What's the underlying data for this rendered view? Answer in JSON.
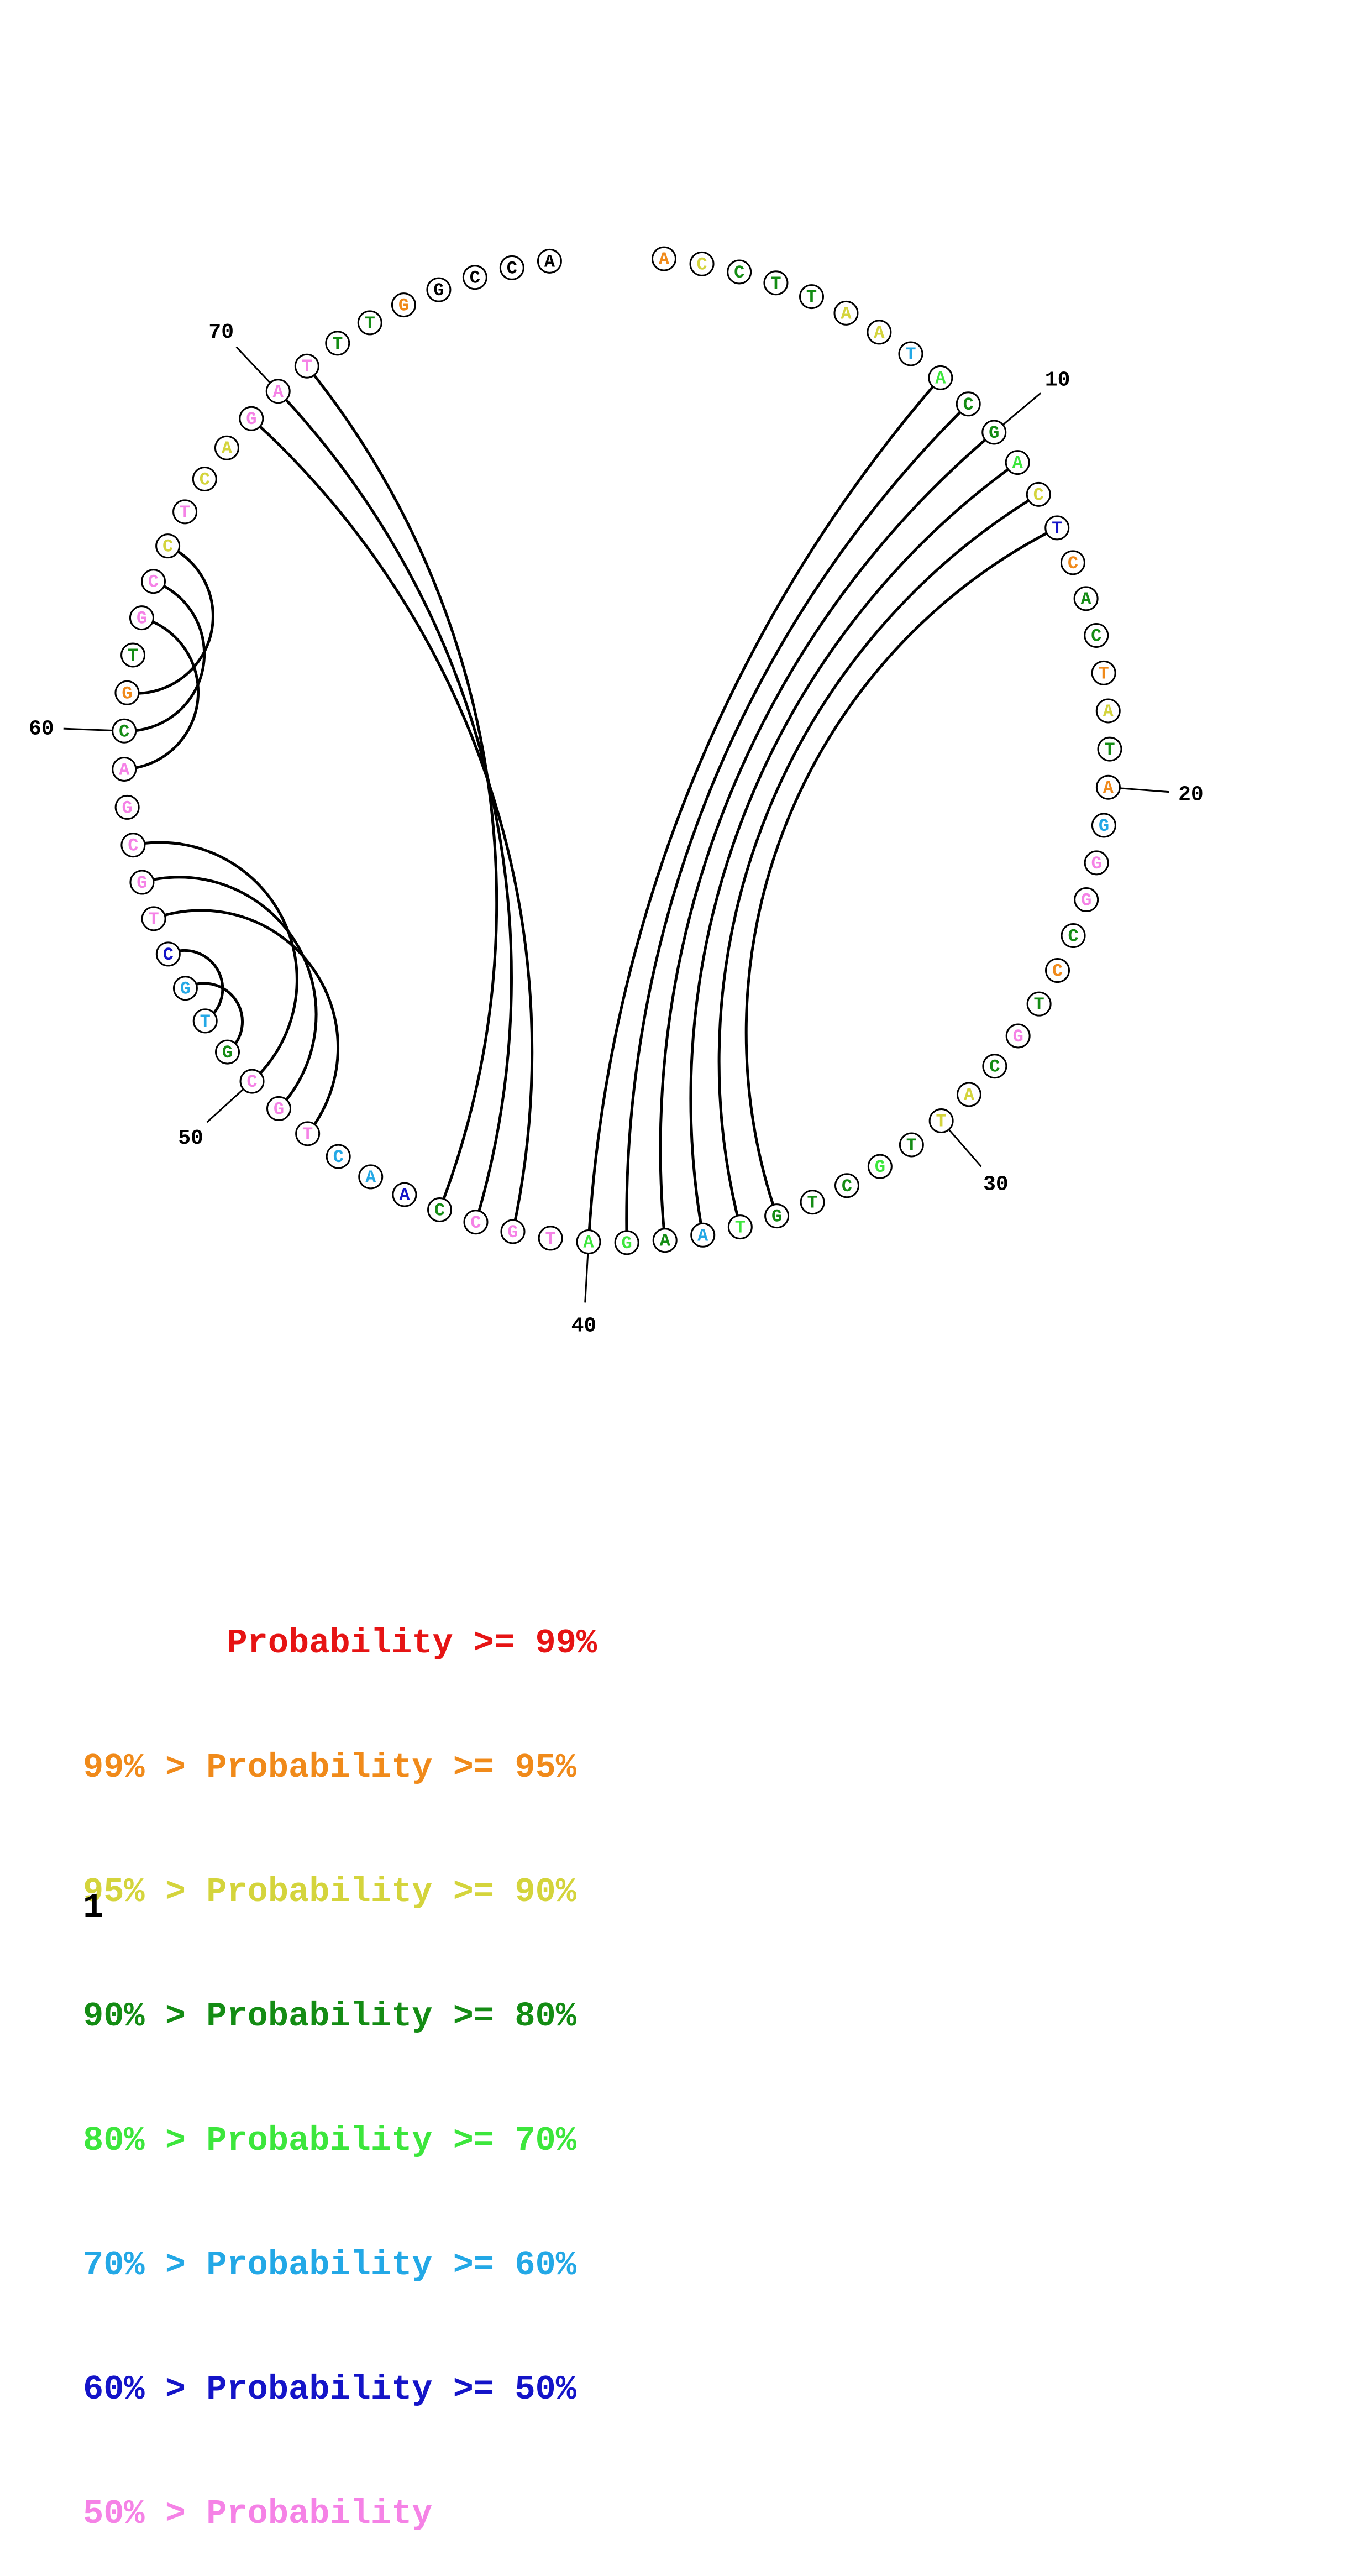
{
  "sequence": "ACCTTAATACGACTCACTATAGGGCCTGCATTGCTGTAAGATGCCAACTGCGTGCTGCGACGTGCCTCAGATTTGGCCA",
  "nucleotide_colors": [
    "#f08a1a",
    "#d4d43c",
    "#148c14",
    "#148c14",
    "#148c14",
    "#d4d43c",
    "#d4d43c",
    "#23a8e6",
    "#3ce63c",
    "#148c14",
    "#148c14",
    "#3ce63c",
    "#d4d43c",
    "#1414c8",
    "#f08a1a",
    "#148c14",
    "#148c14",
    "#f08a1a",
    "#d4d43c",
    "#148c14",
    "#f08a1a",
    "#23a8e6",
    "#f582e6",
    "#f582e6",
    "#148c14",
    "#f08a1a",
    "#148c14",
    "#f582e6",
    "#148c14",
    "#d4d43c",
    "#d4d43c",
    "#148c14",
    "#3ce63c",
    "#148c14",
    "#148c14",
    "#148c14",
    "#3ce63c",
    "#23a8e6",
    "#148c14",
    "#3ce63c",
    "#3ce63c",
    "#f582e6",
    "#f582e6",
    "#f582e6",
    "#148c14",
    "#1414c8",
    "#23a8e6",
    "#23a8e6",
    "#f582e6",
    "#f582e6",
    "#f582e6",
    "#148c14",
    "#23a8e6",
    "#23a8e6",
    "#1414c8",
    "#f582e6",
    "#f582e6",
    "#f582e6",
    "#f582e6",
    "#f582e6",
    "#148c14",
    "#f08a1a",
    "#148c14",
    "#f582e6",
    "#f582e6",
    "#d4d43c",
    "#f582e6",
    "#d4d43c",
    "#d4d43c",
    "#f582e6",
    "#f582e6",
    "#f582e6",
    "#148c14",
    "#148c14",
    "#f08a1a"
  ],
  "position_labels": [
    {
      "index": 10,
      "text": "10"
    },
    {
      "index": 20,
      "text": "20"
    },
    {
      "index": 30,
      "text": "30"
    },
    {
      "index": 40,
      "text": "40"
    },
    {
      "index": 50,
      "text": "50"
    },
    {
      "index": 60,
      "text": "60"
    },
    {
      "index": 70,
      "text": "70"
    }
  ],
  "base_pairs": [
    [
      8,
      40
    ],
    [
      9,
      39
    ],
    [
      10,
      38
    ],
    [
      11,
      37
    ],
    [
      12,
      36
    ],
    [
      13,
      35
    ],
    [
      48,
      55
    ],
    [
      49,
      56
    ],
    [
      50,
      57
    ],
    [
      51,
      53
    ],
    [
      52,
      54
    ],
    [
      59,
      63
    ],
    [
      60,
      64
    ],
    [
      61,
      65
    ],
    [
      42,
      69
    ],
    [
      43,
      70
    ],
    [
      44,
      71
    ]
  ],
  "legend": [
    {
      "text": "       Probability >= 99%",
      "color": "#e61414"
    },
    {
      "text": "99% > Probability >= 95%",
      "color": "#f08a1a"
    },
    {
      "text": "95% > Probability >= 90%",
      "color": "#d4d43c"
    },
    {
      "text": "90% > Probability >= 80%",
      "color": "#148c14"
    },
    {
      "text": "80% > Probability >= 70%",
      "color": "#3ce63c"
    },
    {
      "text": "70% > Probability >= 60%",
      "color": "#23a8e6"
    },
    {
      "text": "60% > Probability >= 50%",
      "color": "#1414c8"
    },
    {
      "text": "50% > Probability",
      "color": "#f582e6"
    }
  ],
  "page_number": "1"
}
